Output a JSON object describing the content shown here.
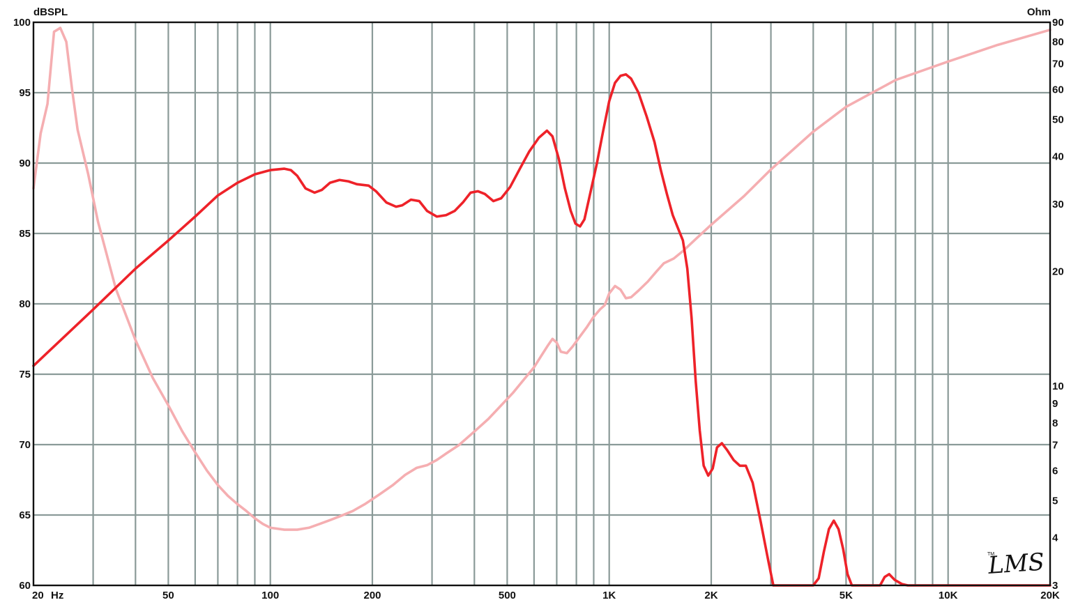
{
  "chart_data": {
    "type": "line",
    "x_scale": "log",
    "xlim": [
      20,
      20000
    ],
    "ylim_left": [
      60,
      100
    ],
    "ylim_right": [
      3,
      90
    ],
    "y_right_scale": "log",
    "ylabel_left": "dBSPL",
    "ylabel_right": "Ohm",
    "x_unit_label": "Hz",
    "grid": true,
    "x_ticks": [
      {
        "value": 20,
        "label": "20"
      },
      {
        "value": 50,
        "label": "50"
      },
      {
        "value": 100,
        "label": "100"
      },
      {
        "value": 200,
        "label": "200"
      },
      {
        "value": 500,
        "label": "500"
      },
      {
        "value": 1000,
        "label": "1K"
      },
      {
        "value": 2000,
        "label": "2K"
      },
      {
        "value": 5000,
        "label": "5K"
      },
      {
        "value": 10000,
        "label": "10K"
      },
      {
        "value": 20000,
        "label": "20K"
      }
    ],
    "y_left_ticks": [
      {
        "value": 100,
        "label": "100"
      },
      {
        "value": 95,
        "label": "95"
      },
      {
        "value": 90,
        "label": "90"
      },
      {
        "value": 85,
        "label": "85"
      },
      {
        "value": 80,
        "label": "80"
      },
      {
        "value": 75,
        "label": "75"
      },
      {
        "value": 70,
        "label": "70"
      },
      {
        "value": 65,
        "label": "65"
      },
      {
        "value": 60,
        "label": "60"
      }
    ],
    "y_right_ticks": [
      {
        "value": 90,
        "label": "90"
      },
      {
        "value": 80,
        "label": "80"
      },
      {
        "value": 70,
        "label": "70"
      },
      {
        "value": 60,
        "label": "60"
      },
      {
        "value": 50,
        "label": "50"
      },
      {
        "value": 40,
        "label": "40"
      },
      {
        "value": 30,
        "label": "30"
      },
      {
        "value": 20,
        "label": "20"
      },
      {
        "value": 10,
        "label": "10"
      },
      {
        "value": 9,
        "label": "9"
      },
      {
        "value": 8,
        "label": "8"
      },
      {
        "value": 7,
        "label": "7"
      },
      {
        "value": 6,
        "label": "6"
      },
      {
        "value": 5,
        "label": "5"
      },
      {
        "value": 4,
        "label": "4"
      },
      {
        "value": 3,
        "label": "3"
      }
    ],
    "series": [
      {
        "axis": "left",
        "color": "#ee2229",
        "points": [
          [
            20,
            75.6
          ],
          [
            25,
            77.8
          ],
          [
            30,
            79.6
          ],
          [
            40,
            82.5
          ],
          [
            50,
            84.5
          ],
          [
            60,
            86.2
          ],
          [
            70,
            87.7
          ],
          [
            80,
            88.6
          ],
          [
            90,
            89.2
          ],
          [
            100,
            89.5
          ],
          [
            110,
            89.6
          ],
          [
            115,
            89.5
          ],
          [
            120,
            89.1
          ],
          [
            127,
            88.2
          ],
          [
            135,
            87.9
          ],
          [
            142,
            88.1
          ],
          [
            150,
            88.6
          ],
          [
            160,
            88.8
          ],
          [
            170,
            88.7
          ],
          [
            180,
            88.5
          ],
          [
            195,
            88.4
          ],
          [
            205,
            88.0
          ],
          [
            220,
            87.2
          ],
          [
            235,
            86.9
          ],
          [
            245,
            87.0
          ],
          [
            260,
            87.4
          ],
          [
            275,
            87.3
          ],
          [
            290,
            86.6
          ],
          [
            310,
            86.2
          ],
          [
            330,
            86.3
          ],
          [
            350,
            86.6
          ],
          [
            370,
            87.2
          ],
          [
            390,
            87.9
          ],
          [
            410,
            88.0
          ],
          [
            430,
            87.8
          ],
          [
            455,
            87.3
          ],
          [
            480,
            87.5
          ],
          [
            510,
            88.3
          ],
          [
            545,
            89.6
          ],
          [
            580,
            90.8
          ],
          [
            620,
            91.8
          ],
          [
            655,
            92.3
          ],
          [
            680,
            91.9
          ],
          [
            710,
            90.3
          ],
          [
            740,
            88.2
          ],
          [
            770,
            86.6
          ],
          [
            795,
            85.7
          ],
          [
            820,
            85.5
          ],
          [
            845,
            86.0
          ],
          [
            880,
            87.9
          ],
          [
            920,
            90.0
          ],
          [
            960,
            92.3
          ],
          [
            1000,
            94.4
          ],
          [
            1040,
            95.7
          ],
          [
            1080,
            96.2
          ],
          [
            1120,
            96.3
          ],
          [
            1160,
            96.0
          ],
          [
            1220,
            95.0
          ],
          [
            1290,
            93.3
          ],
          [
            1360,
            91.5
          ],
          [
            1420,
            89.5
          ],
          [
            1480,
            87.8
          ],
          [
            1540,
            86.3
          ],
          [
            1600,
            85.3
          ],
          [
            1650,
            84.5
          ],
          [
            1700,
            82.5
          ],
          [
            1750,
            79.0
          ],
          [
            1800,
            74.5
          ],
          [
            1850,
            71.0
          ],
          [
            1900,
            68.5
          ],
          [
            1960,
            67.8
          ],
          [
            2020,
            68.3
          ],
          [
            2080,
            69.8
          ],
          [
            2150,
            70.1
          ],
          [
            2230,
            69.6
          ],
          [
            2330,
            68.9
          ],
          [
            2430,
            68.5
          ],
          [
            2530,
            68.5
          ],
          [
            2650,
            67.3
          ],
          [
            2800,
            64.5
          ],
          [
            2950,
            61.7
          ],
          [
            3050,
            60.0
          ],
          [
            4000,
            60.0
          ],
          [
            4150,
            60.5
          ],
          [
            4300,
            62.4
          ],
          [
            4450,
            64.0
          ],
          [
            4600,
            64.6
          ],
          [
            4750,
            64.0
          ],
          [
            4900,
            62.6
          ],
          [
            5050,
            60.8
          ],
          [
            5200,
            60.0
          ],
          [
            6300,
            60.0
          ],
          [
            6500,
            60.6
          ],
          [
            6700,
            60.8
          ],
          [
            6950,
            60.4
          ],
          [
            7300,
            60.1
          ],
          [
            7600,
            60.0
          ],
          [
            20000,
            60.0
          ]
        ]
      },
      {
        "axis": "right",
        "color": "#f5aeb1",
        "points": [
          [
            20,
            33.0
          ],
          [
            21,
            46.0
          ],
          [
            22,
            55.0
          ],
          [
            23,
            85.0
          ],
          [
            24,
            87.0
          ],
          [
            25,
            80.0
          ],
          [
            26,
            60.0
          ],
          [
            27,
            47.0
          ],
          [
            29,
            36.0
          ],
          [
            31,
            27.0
          ],
          [
            35,
            18.0
          ],
          [
            40,
            13.2
          ],
          [
            45,
            10.5
          ],
          [
            50,
            8.9
          ],
          [
            55,
            7.6
          ],
          [
            60,
            6.7
          ],
          [
            65,
            6.0
          ],
          [
            70,
            5.5
          ],
          [
            75,
            5.15
          ],
          [
            80,
            4.9
          ],
          [
            85,
            4.7
          ],
          [
            90,
            4.5
          ],
          [
            95,
            4.35
          ],
          [
            100,
            4.25
          ],
          [
            110,
            4.2
          ],
          [
            120,
            4.2
          ],
          [
            130,
            4.25
          ],
          [
            140,
            4.35
          ],
          [
            150,
            4.45
          ],
          [
            160,
            4.55
          ],
          [
            175,
            4.7
          ],
          [
            190,
            4.9
          ],
          [
            210,
            5.2
          ],
          [
            230,
            5.5
          ],
          [
            250,
            5.85
          ],
          [
            270,
            6.1
          ],
          [
            290,
            6.2
          ],
          [
            310,
            6.4
          ],
          [
            330,
            6.65
          ],
          [
            360,
            7.0
          ],
          [
            400,
            7.6
          ],
          [
            440,
            8.2
          ],
          [
            480,
            8.9
          ],
          [
            520,
            9.6
          ],
          [
            560,
            10.4
          ],
          [
            600,
            11.2
          ],
          [
            630,
            12.0
          ],
          [
            660,
            12.8
          ],
          [
            680,
            13.3
          ],
          [
            700,
            13.0
          ],
          [
            720,
            12.3
          ],
          [
            750,
            12.2
          ],
          [
            780,
            12.7
          ],
          [
            820,
            13.5
          ],
          [
            860,
            14.3
          ],
          [
            900,
            15.2
          ],
          [
            940,
            15.9
          ],
          [
            970,
            16.3
          ],
          [
            1000,
            17.5
          ],
          [
            1040,
            18.3
          ],
          [
            1080,
            17.9
          ],
          [
            1120,
            17.0
          ],
          [
            1160,
            17.1
          ],
          [
            1220,
            17.8
          ],
          [
            1300,
            18.8
          ],
          [
            1380,
            20.0
          ],
          [
            1450,
            21.0
          ],
          [
            1550,
            21.6
          ],
          [
            1650,
            22.6
          ],
          [
            1800,
            24.3
          ],
          [
            2000,
            26.5
          ],
          [
            2500,
            31.5
          ],
          [
            3000,
            37.0
          ],
          [
            4000,
            46.5
          ],
          [
            5000,
            54.0
          ],
          [
            7000,
            63.5
          ],
          [
            10000,
            71.0
          ],
          [
            14000,
            78.5
          ],
          [
            20000,
            86.0
          ]
        ]
      }
    ]
  },
  "logo": {
    "text": "LMS",
    "tm": "TM"
  }
}
